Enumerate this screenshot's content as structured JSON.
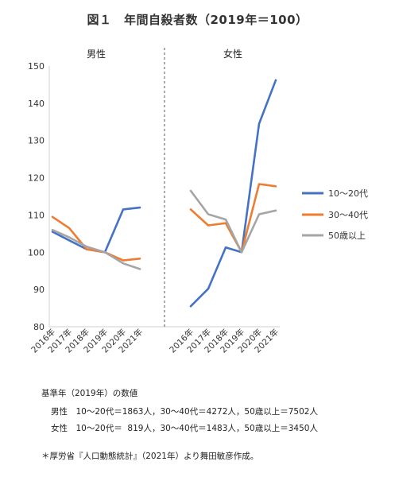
{
  "title": "図１　年間自殺者数（2019年＝100）",
  "colors": {
    "teens_20s": "#4472C4",
    "age_30_40s": "#ED7D31",
    "age_50plus": "#A5A5A5"
  },
  "chart_data": {
    "type": "line",
    "ylim": [
      80,
      150
    ],
    "yticks": [
      "80",
      "90",
      "100",
      "110",
      "120",
      "130",
      "140",
      "150"
    ],
    "grid": false,
    "legend_position": "right",
    "categories": [
      "2016年",
      "2017年",
      "2018年",
      "2019年",
      "2020年",
      "2021年"
    ],
    "panels": [
      {
        "label": "男性",
        "series": [
          {
            "name": "10～20代",
            "color": "#4472C4",
            "values": [
              105.5,
              103.2,
              100.8,
              100,
              111.5,
              112
            ]
          },
          {
            "name": "30～40代",
            "color": "#ED7D31",
            "values": [
              109.5,
              106.5,
              100.8,
              100,
              97.8,
              98.3
            ]
          },
          {
            "name": "50歳以上",
            "color": "#A5A5A5",
            "values": [
              106,
              104,
              101.5,
              100,
              97,
              95.5
            ]
          }
        ]
      },
      {
        "label": "女性",
        "series": [
          {
            "name": "10～20代",
            "color": "#4472C4",
            "values": [
              85.5,
              90.2,
              101.3,
              100,
              134.5,
              146.2
            ]
          },
          {
            "name": "30～40代",
            "color": "#ED7D31",
            "values": [
              111.5,
              107.2,
              107.8,
              100,
              118.3,
              117.7
            ]
          },
          {
            "name": "50歳以上",
            "color": "#A5A5A5",
            "values": [
              116.5,
              110.2,
              108.8,
              100,
              110.2,
              111.2
            ]
          }
        ]
      }
    ],
    "legend": [
      "10～20代",
      "30～40代",
      "50歳以上"
    ]
  },
  "notes": {
    "header": "基準年（2019年）の数値",
    "male": "男性　10～20代＝1863人，30～40代＝4272人，50歳以上＝7502人",
    "female": "女性　10～20代＝  819人，30～40代＝1483人，50歳以上＝3450人"
  },
  "source": "＊厚労省『人口動態統計』（2021年）より舞田敏彦作成。"
}
